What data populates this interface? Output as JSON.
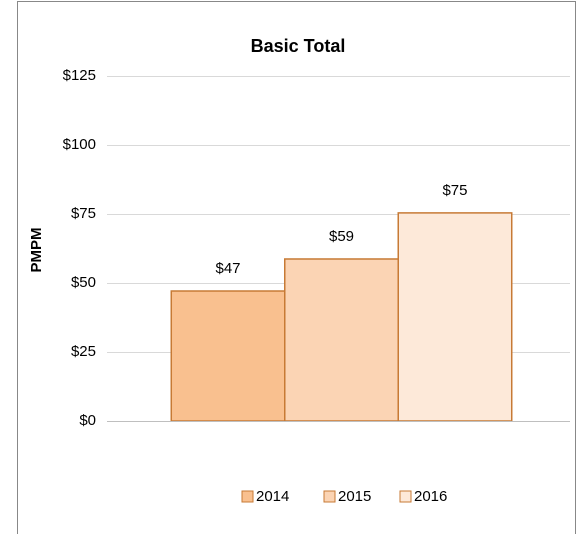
{
  "chart_data": {
    "type": "bar",
    "title": "Basic Total",
    "y_label": "PMPM",
    "categories": [
      null
    ],
    "series": [
      {
        "name": "2014",
        "color": "#f9c08f",
        "values": [
          47.1
        ],
        "value_labels": [
          "$47"
        ]
      },
      {
        "name": "2015",
        "color": "#fbd4b4",
        "values": [
          58.7
        ],
        "value_labels": [
          "$59"
        ]
      },
      {
        "name": "2016",
        "color": "#fde9d9",
        "values": [
          75.4
        ],
        "value_labels": [
          "$75"
        ]
      }
    ],
    "edge_color": "#c77a35",
    "ylim": [
      0,
      125
    ],
    "yticks": [
      {
        "value": 0,
        "label": "$0"
      },
      {
        "value": 25,
        "label": "$25"
      },
      {
        "value": 50,
        "label": "$50"
      },
      {
        "value": 75,
        "label": "$75"
      },
      {
        "value": 100,
        "label": "$100"
      },
      {
        "value": 125,
        "label": "$125"
      }
    ],
    "grid": true,
    "legend": "bottom"
  }
}
